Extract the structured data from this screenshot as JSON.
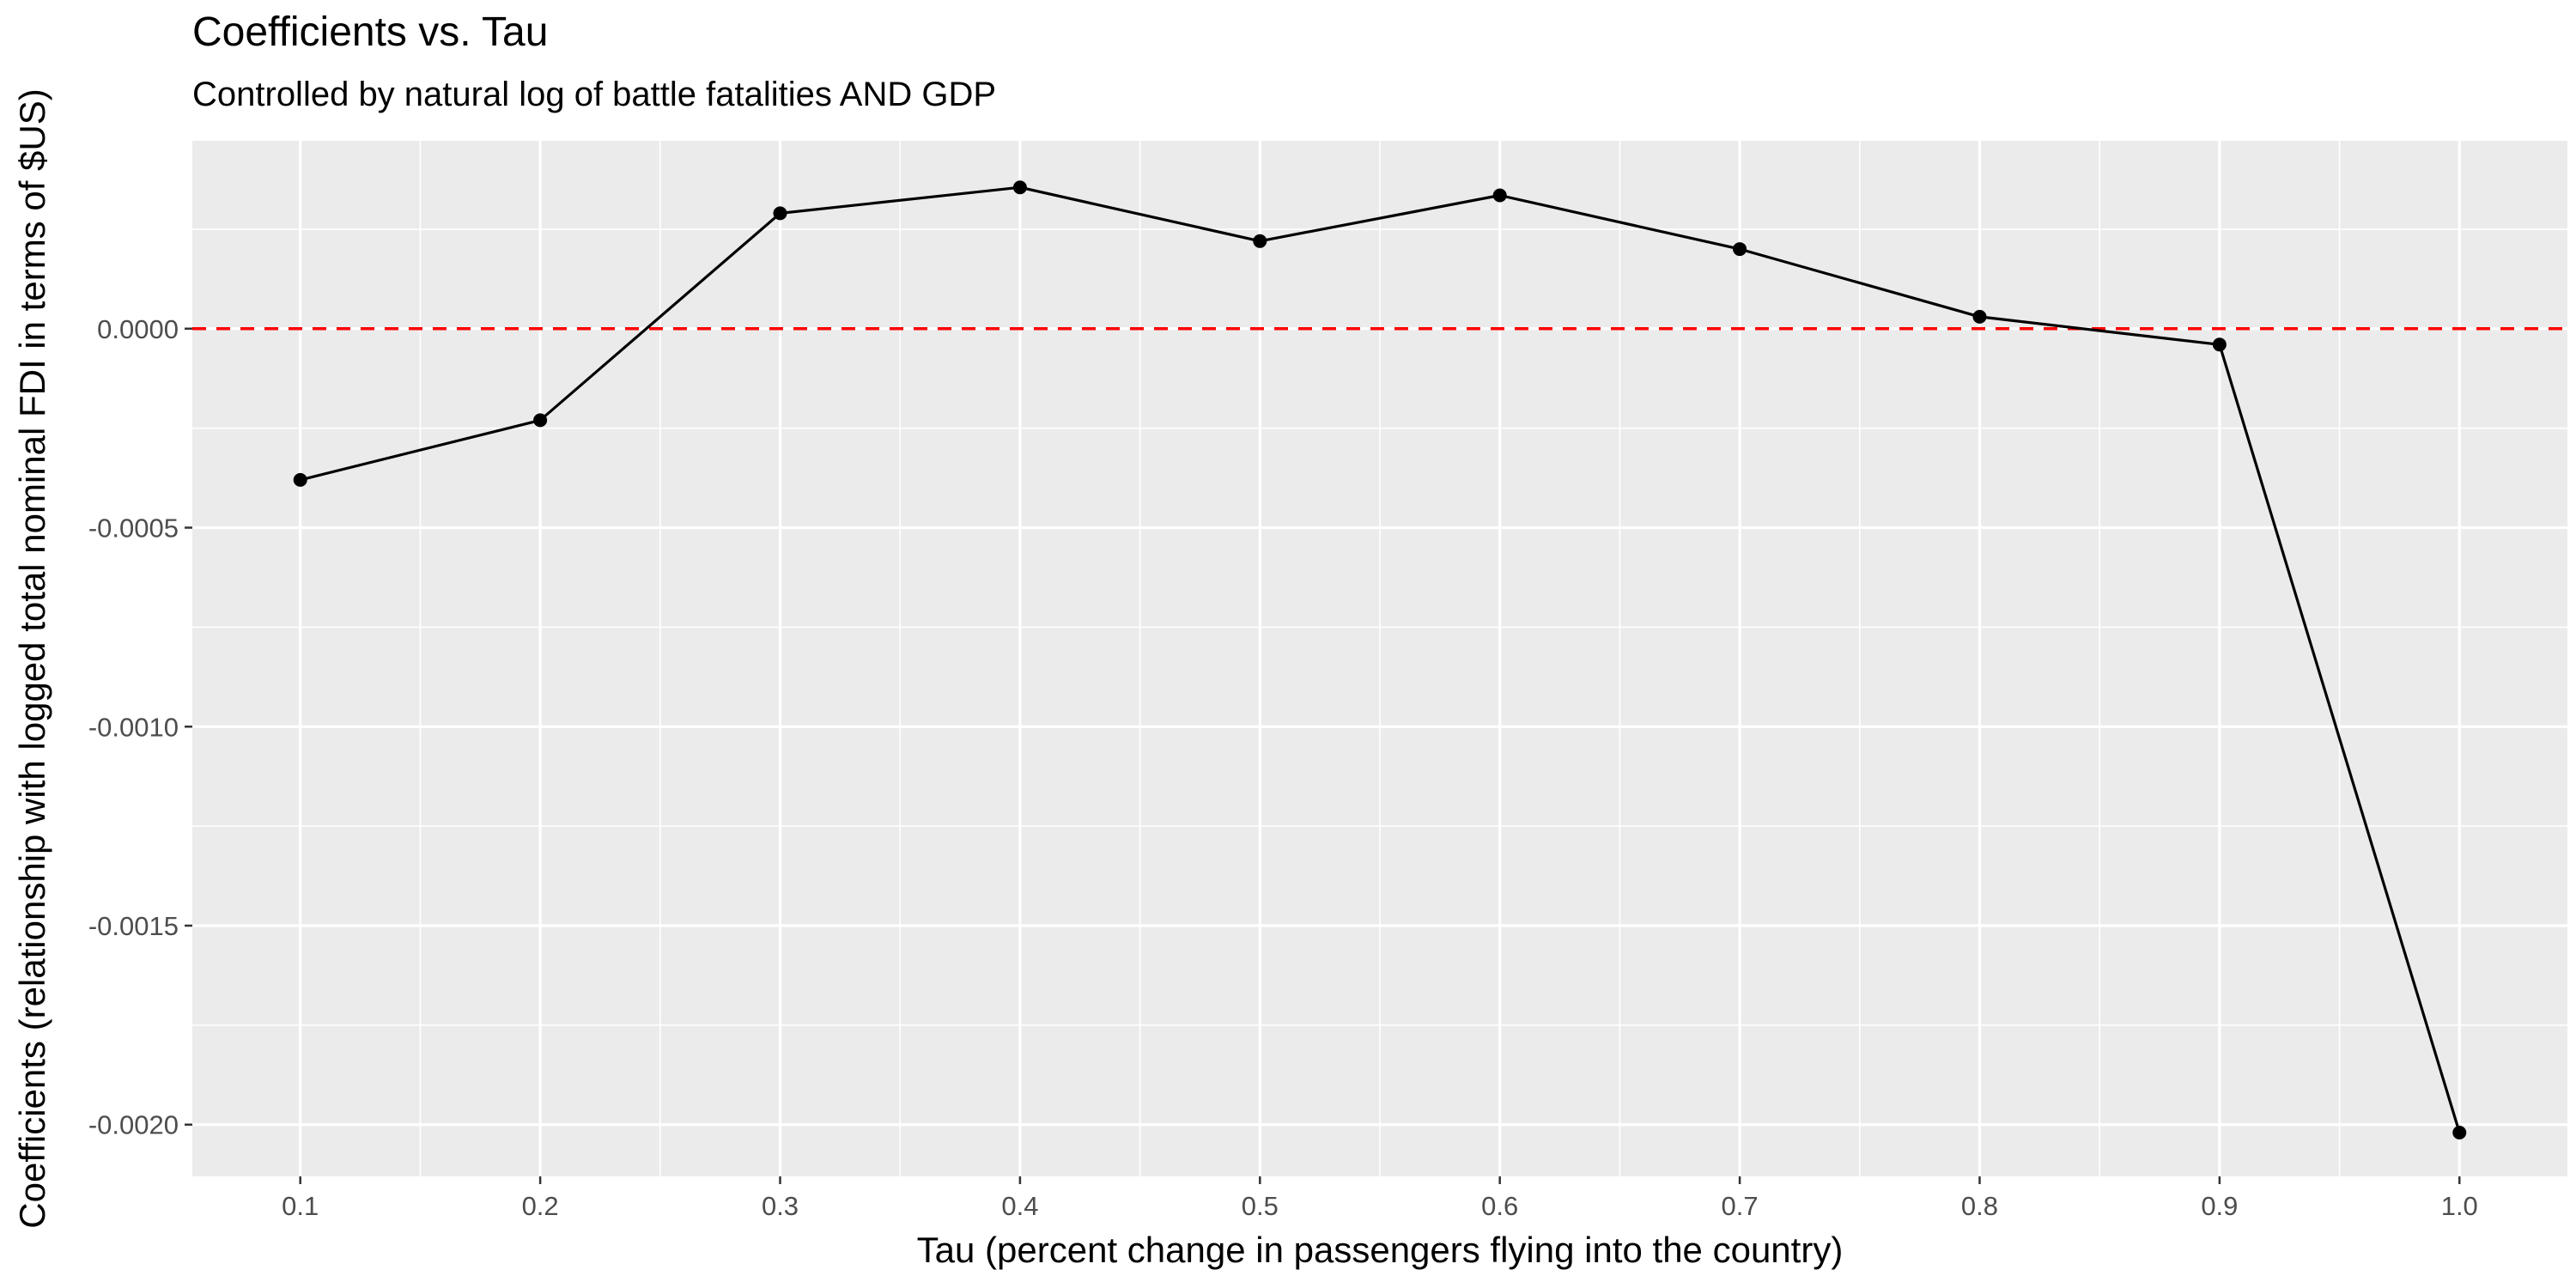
{
  "chart_data": {
    "type": "line",
    "title": "Coefficients vs. Tau",
    "subtitle": "Controlled by natural log of battle fatalities AND GDP",
    "xlabel": "Tau (percent change in passengers flying into the country)",
    "ylabel": "Coefficients (relationship with logged total nominal FDI in terms of $US)",
    "x": [
      0.1,
      0.2,
      0.3,
      0.4,
      0.5,
      0.6,
      0.7,
      0.8,
      0.9,
      1.0
    ],
    "series": [
      {
        "values": [
          -0.00038,
          -0.00023,
          0.00029,
          0.000355,
          0.00022,
          0.000335,
          0.0002,
          3e-05,
          -4e-05,
          -0.00202
        ]
      }
    ],
    "x_ticks": [
      "0.1",
      "0.2",
      "0.3",
      "0.4",
      "0.5",
      "0.6",
      "0.7",
      "0.8",
      "0.9",
      "1.0"
    ],
    "y_ticks": [
      {
        "value": 0.0,
        "label": "0.0000"
      },
      {
        "value": -0.0005,
        "label": "-0.0005"
      },
      {
        "value": -0.001,
        "label": "-0.0010"
      },
      {
        "value": -0.0015,
        "label": "-0.0015"
      },
      {
        "value": -0.002,
        "label": "-0.0020"
      }
    ],
    "xlim": [
      0.055,
      1.045
    ],
    "ylim": [
      -0.00213,
      0.000472
    ],
    "reference_line": {
      "y": 0,
      "style": "dashed",
      "color": "#ff0000"
    },
    "line_color": "#000000",
    "panel_background": "#ebebeb",
    "grid": true,
    "legend": "none"
  }
}
